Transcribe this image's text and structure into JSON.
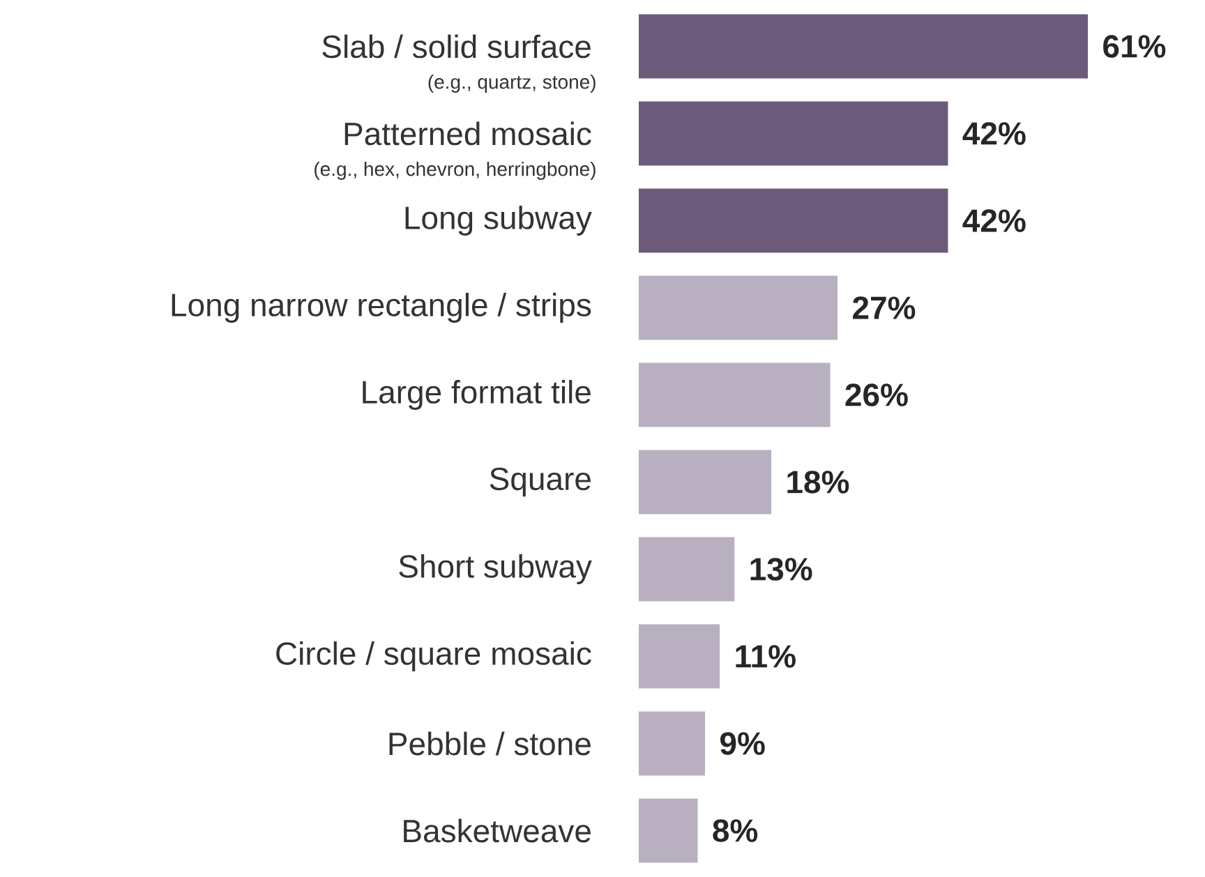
{
  "chart_data": {
    "type": "bar",
    "orientation": "horizontal",
    "categories": [
      "Slab / solid surface",
      "Patterned mosaic",
      "Long subway",
      "Long narrow rectangle  / strips",
      "Large format tile",
      "Square",
      "Short subway",
      "Circle / square mosaic",
      "Pebble / stone",
      "Basketweave"
    ],
    "values": [
      61,
      42,
      42,
      27,
      26,
      18,
      13,
      11,
      9,
      8
    ],
    "value_labels": [
      "61%",
      "42%",
      "42%",
      "27%",
      "26%",
      "18%",
      "13%",
      "11%",
      "9%",
      "8%"
    ],
    "colors": [
      "#6b5a7a",
      "#6b5a7a",
      "#6b5a7a",
      "#b8afc1",
      "#b8afc1",
      "#b8afc1",
      "#b8afc1",
      "#b8afc1",
      "#b8afc1",
      "#b8afc1"
    ],
    "annotations": [
      "(e.g., quartz, stone)",
      "(e.g., hex, chevron, herringbone)"
    ]
  }
}
